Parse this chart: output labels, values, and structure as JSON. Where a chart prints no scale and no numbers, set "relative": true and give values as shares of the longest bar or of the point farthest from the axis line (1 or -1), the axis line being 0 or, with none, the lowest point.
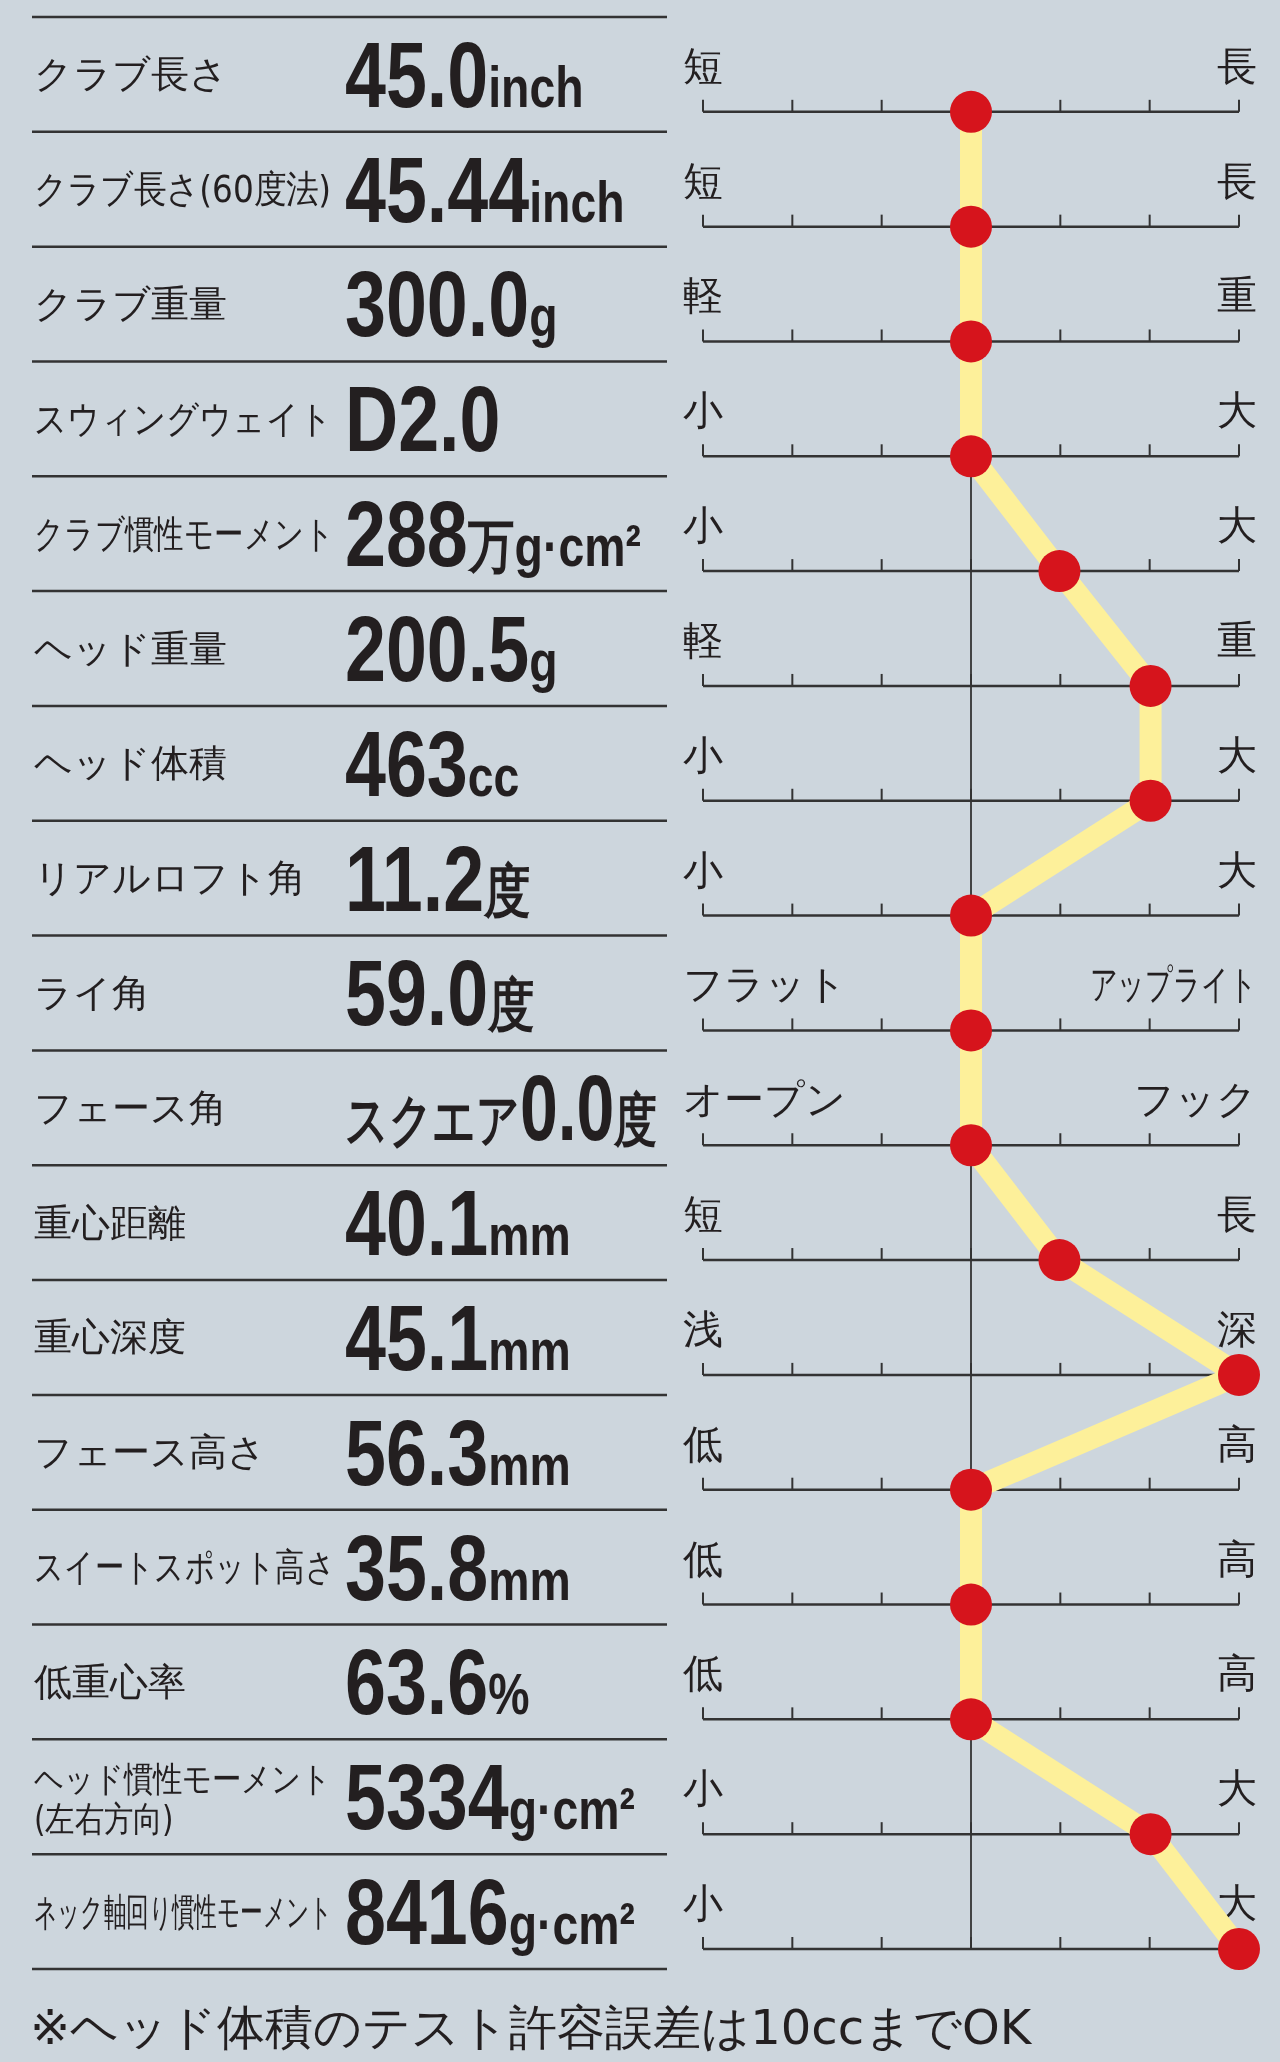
{
  "chart_data": {
    "type": "line",
    "orientation": "horizontal",
    "relative": true,
    "marker": "circle",
    "line_style": "solid",
    "grid": "y",
    "categories": [
      "クラブ長さ",
      "クラブ長さ(60度法)",
      "クラブ重量",
      "スウィングウェイト",
      "クラブ慣性モーメント",
      "ヘッド重量",
      "ヘッド体積",
      "リアルロフト角",
      "ライ角",
      "フェース角",
      "重心距離",
      "重心深度",
      "フェース高さ",
      "スイートスポット高さ",
      "低重心率",
      "ヘッド慣性モーメント(左右方向)",
      "ネック軸回り慣性モーメント"
    ],
    "values": [
      0,
      0,
      0,
      0,
      0.33,
      0.67,
      0.67,
      0,
      0,
      0,
      0.33,
      1,
      0,
      0,
      0,
      0.67,
      1
    ],
    "color": "#fdf09a",
    "colors": [
      "#d6141c",
      "#d6141c",
      "#d6141c",
      "#d6141c",
      "#d6141c",
      "#d6141c",
      "#d6141c",
      "#d6141c",
      "#d6141c",
      "#d6141c",
      "#d6141c",
      "#d6141c",
      "#d6141c",
      "#d6141c",
      "#d6141c",
      "#d6141c",
      "#d6141c"
    ],
    "annotations": [
      "45.0inch",
      "短",
      "長",
      "45.44inch",
      "短",
      "長",
      "300.0g",
      "軽",
      "重",
      "D2.0",
      "小",
      "大",
      "288万g·cm²",
      "小",
      "大",
      "200.5g",
      "軽",
      "重",
      "463cc",
      "小",
      "大",
      "11.2度",
      "小",
      "大",
      "59.0度",
      "フラット",
      "アップライト",
      "スクエア0.0度",
      "オープン",
      "フック",
      "40.1mm",
      "短",
      "長",
      "45.1mm",
      "浅",
      "深",
      "56.3mm",
      "低",
      "高",
      "35.8mm",
      "低",
      "高",
      "63.6%",
      "低",
      "高",
      "5334g·cm²",
      "小",
      "大",
      "8416g·cm²",
      "小",
      "大",
      "※ヘッド体積のテスト許容誤差は10ccまでOK"
    ]
  }
}
